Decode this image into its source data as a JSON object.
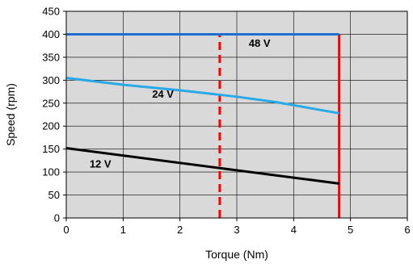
{
  "chart_data": {
    "type": "line",
    "xlabel": "Torque (Nm)",
    "ylabel": "Speed (rpm)",
    "xlim": [
      0,
      6
    ],
    "ylim": [
      0,
      450
    ],
    "xticks": [
      "0",
      "1",
      "2",
      "3",
      "4",
      "5",
      "6"
    ],
    "yticks": [
      "0",
      "50",
      "100",
      "150",
      "200",
      "250",
      "300",
      "350",
      "400",
      "450"
    ],
    "grid": true,
    "legend": "none",
    "plot_background": "#d9d9d9",
    "series": [
      {
        "name": "48 V",
        "color": "#1f6fd0",
        "x": [
          0,
          4.8
        ],
        "y": [
          400,
          400
        ]
      },
      {
        "name": "24 V",
        "color": "#29a9e6",
        "x": [
          0,
          1,
          2,
          3,
          3.7,
          4.8
        ],
        "y": [
          305,
          290,
          278,
          264,
          252,
          228
        ]
      },
      {
        "name": "12 V",
        "color": "#000000",
        "x": [
          0,
          4.8
        ],
        "y": [
          152,
          75
        ]
      }
    ],
    "vertical_lines": [
      {
        "x": 2.7,
        "y": [
          0,
          400
        ],
        "color": "#ff0000",
        "style": "dashed"
      },
      {
        "x": 4.8,
        "y": [
          0,
          400
        ],
        "color": "#ff0000",
        "style": "solid"
      }
    ],
    "annotations": [
      {
        "text": "48 V",
        "x": 3.4,
        "y": 373
      },
      {
        "text": "24 V",
        "x": 1.7,
        "y": 262
      },
      {
        "text": "12 V",
        "x": 0.6,
        "y": 110
      }
    ]
  }
}
